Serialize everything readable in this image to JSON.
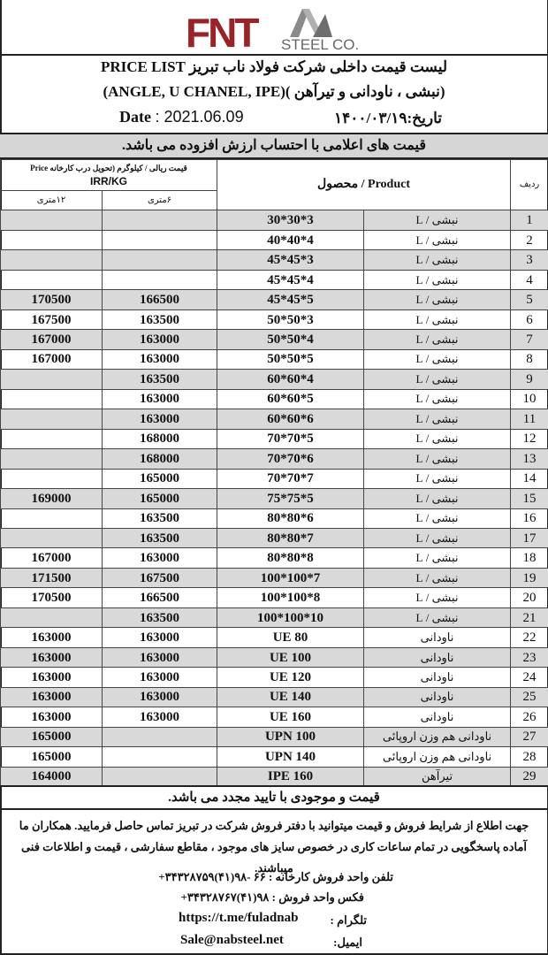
{
  "logo": {
    "brand": "FNT",
    "sub": "STEEL CO.",
    "color": "#9b2226"
  },
  "header": {
    "title": "لیست قیمت داخلی شرکت فولاد ناب تبریز PRICE LIST",
    "subtitle": "(نبشی ، ناودانی و تیرآهن )(ANGLE, U CHANEL, IPE)",
    "date_label": "Date",
    "date_value": ": 2021.06.09",
    "date_fa": "تاریخ:۱۴۰۰/۰۳/۱۹",
    "vat_note": "قیمت های اعلامی با احتساب ارزش افزوده می باشد."
  },
  "table": {
    "col_index": "ردیف",
    "col_product": "Product / محصول",
    "col_price": "قیمت ریالی / کیلوگرم (تحویل درب کارخانه Price",
    "col_price_unit": "IRR/KG",
    "col_6m": "۶متری",
    "col_12m": "۱۲متری",
    "rows": [
      [
        "1",
        "نبشی / L",
        "30*30*3",
        "",
        ""
      ],
      [
        "2",
        "نبشی / L",
        "40*40*4",
        "",
        ""
      ],
      [
        "3",
        "نبشی / L",
        "45*45*3",
        "",
        ""
      ],
      [
        "4",
        "نبشی / L",
        "45*45*4",
        "",
        ""
      ],
      [
        "5",
        "نبشی / L",
        "45*45*5",
        "166500",
        "170500"
      ],
      [
        "6",
        "نبشی / L",
        "50*50*3",
        "163500",
        "167500"
      ],
      [
        "7",
        "نبشی / L",
        "50*50*4",
        "163000",
        "167000"
      ],
      [
        "8",
        "نبشی / L",
        "50*50*5",
        "163000",
        "167000"
      ],
      [
        "9",
        "نبشی / L",
        "60*60*4",
        "163500",
        ""
      ],
      [
        "10",
        "نبشی / L",
        "60*60*5",
        "163000",
        ""
      ],
      [
        "11",
        "نبشی / L",
        "60*60*6",
        "163000",
        ""
      ],
      [
        "12",
        "نبشی / L",
        "70*70*5",
        "168000",
        ""
      ],
      [
        "13",
        "نبشی / L",
        "70*70*6",
        "168000",
        ""
      ],
      [
        "14",
        "نبشی / L",
        "70*70*7",
        "165000",
        ""
      ],
      [
        "15",
        "نبشی / L",
        "75*75*5",
        "165000",
        "169000"
      ],
      [
        "16",
        "نبشی / L",
        "80*80*6",
        "163500",
        ""
      ],
      [
        "17",
        "نبشی / L",
        "80*80*7",
        "163500",
        ""
      ],
      [
        "18",
        "نبشی / L",
        "80*80*8",
        "163000",
        "167000"
      ],
      [
        "19",
        "نبشی / L",
        "100*100*7",
        "167500",
        "171500"
      ],
      [
        "20",
        "نبشی / L",
        "100*100*8",
        "166500",
        "170500"
      ],
      [
        "21",
        "نبشی / L",
        "100*100*10",
        "163500",
        ""
      ],
      [
        "22",
        "ناودانی",
        "UE 80",
        "163000",
        "163000"
      ],
      [
        "23",
        "ناودانی",
        "UE 100",
        "163000",
        "163000"
      ],
      [
        "24",
        "ناودانی",
        "UE 120",
        "163000",
        "163000"
      ],
      [
        "25",
        "ناودانی",
        "UE 140",
        "163000",
        "163000"
      ],
      [
        "26",
        "ناودانی",
        "UE 160",
        "163000",
        "163000"
      ],
      [
        "27",
        "ناودانی هم وزن اروپائی",
        "UPN 100",
        "",
        "165000"
      ],
      [
        "28",
        "ناودانی هم وزن اروپائی",
        "UPN 140",
        "",
        "165000"
      ],
      [
        "29",
        "تیرآهن",
        "IPE 160",
        "",
        "164000"
      ]
    ]
  },
  "footer": {
    "confirm_note": "قیمت و موجودی با تایید مجدد می باشد.",
    "paragraph": "جهت اطلاع از شرایط فروش و قیمت میتوانید با دفتر فروش شرکت در تبریز تماس حاصل فرمایید. همکاران ما آماده پاسخگویی در تمام ساعات کاری در خصوص سایز های موجود ، مقاطع سفارشی ، قیمت و اطلاعات فنی میباشند.",
    "phone": "تلفن واحد فروش کارخانه :  ۶۶ -۹۸(۴۱)۳۴۳۲۸۷۵۹+",
    "fax": "فکس واحد فروش : ۹۸(۴۱)۳۴۳۲۸۷۶۷+",
    "telegram_label": "تلگرام :",
    "telegram": "https://t.me/fuladnab",
    "email_label": "ایمیل:",
    "email": "Sale@nabsteel.net"
  }
}
